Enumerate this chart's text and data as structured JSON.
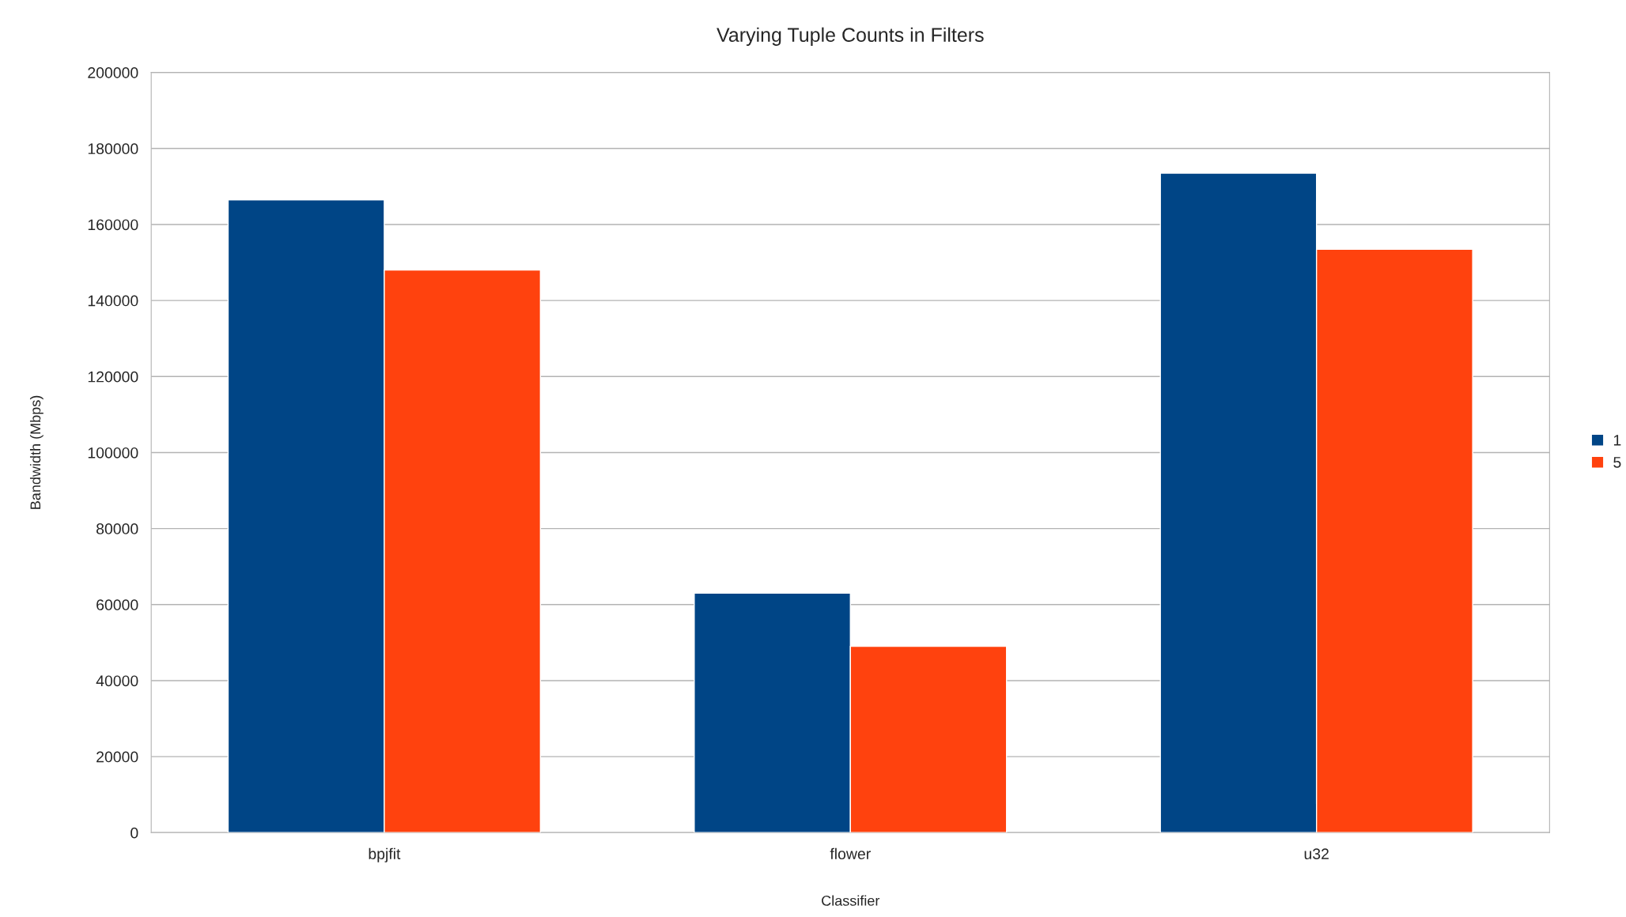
{
  "chart_data": {
    "type": "bar",
    "title": "Varying Tuple Counts in Filters",
    "xlabel": "Classifier",
    "ylabel": "Bandwidth (Mbps)",
    "categories": [
      "bpjfit",
      "flower",
      "u32"
    ],
    "series": [
      {
        "name": "1",
        "color": "#004586",
        "values": [
          166500,
          63000,
          173500
        ]
      },
      {
        "name": "5",
        "color": "#ff420e",
        "values": [
          148000,
          49000,
          153500
        ]
      }
    ],
    "ylim": [
      0,
      200000
    ],
    "yticks": [
      0,
      20000,
      40000,
      60000,
      80000,
      100000,
      120000,
      140000,
      160000,
      180000,
      200000
    ],
    "grid": "y",
    "legend": "right"
  }
}
